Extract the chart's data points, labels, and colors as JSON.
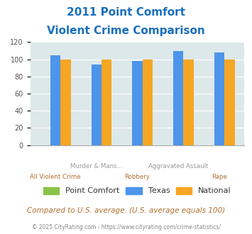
{
  "title_line1": "2011 Point Comfort",
  "title_line2": "Violent Crime Comparison",
  "point_comfort": [
    0,
    0,
    0,
    0,
    0
  ],
  "texas": [
    105,
    94,
    98,
    110,
    108
  ],
  "national": [
    100,
    100,
    100,
    100,
    100
  ],
  "x_labels_top": [
    "",
    "Murder & Mans...",
    "",
    "Aggravated Assault",
    ""
  ],
  "x_labels_bot": [
    "All Violent Crime",
    "",
    "Robbery",
    "",
    "Rape"
  ],
  "groups": 5,
  "texas_color": "#4d94eb",
  "national_color": "#f5a623",
  "point_comfort_color": "#8bc34a",
  "bg_color": "#dde8ea",
  "title_color": "#1a6fbd",
  "xlabel_color_top": "#999999",
  "xlabel_color_bot": "#b07030",
  "ylim": [
    0,
    120
  ],
  "yticks": [
    0,
    20,
    40,
    60,
    80,
    100,
    120
  ],
  "footer_text": "Compared to U.S. average. (U.S. average equals 100)",
  "copyright_text": "© 2025 CityRating.com - https://www.cityrating.com/crime-statistics/",
  "legend_labels": [
    "Point Comfort",
    "Texas",
    "National"
  ],
  "bar_width": 0.25
}
